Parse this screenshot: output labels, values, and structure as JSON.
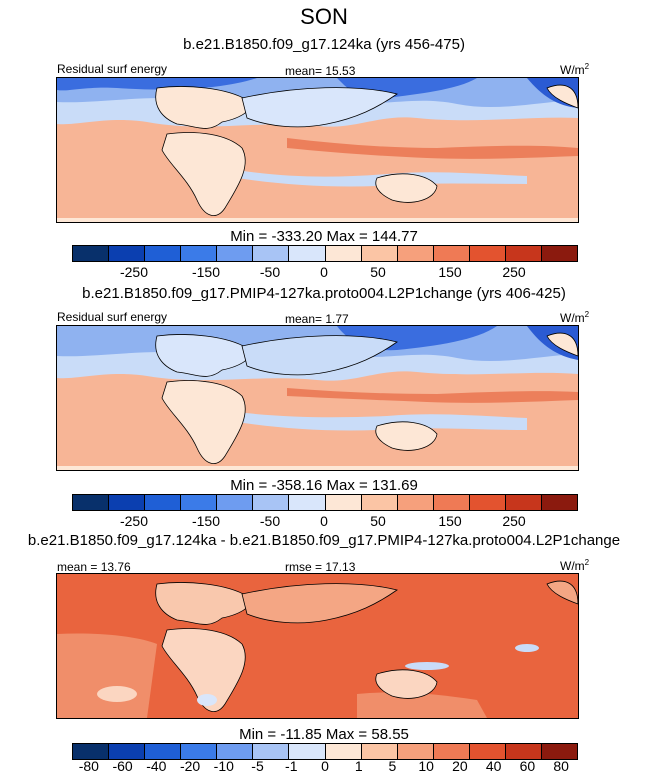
{
  "figure": {
    "title": "SON"
  },
  "panels": [
    {
      "title": "b.e21.B1850.f09_g17.124ka (yrs 456-475)",
      "left_label": "Residual surf energy",
      "center_label": "mean=  15.53",
      "units": "W/m",
      "units_sup": "2",
      "minmax": "Min = -333.20 Max = 144.77",
      "colorbar_ticks": [
        "-250",
        "-150",
        "-50",
        "0",
        "50",
        "150",
        "250"
      ]
    },
    {
      "title": "b.e21.B1850.f09_g17.PMIP4-127ka.proto004.L2P1change (yrs 406-425)",
      "left_label": "Residual surf energy",
      "center_label": "mean=  1.77",
      "units": "W/m",
      "units_sup": "2",
      "minmax": "Min = -358.16 Max = 131.69",
      "colorbar_ticks": [
        "-250",
        "-150",
        "-50",
        "0",
        "50",
        "150",
        "250"
      ]
    },
    {
      "title": "b.e21.B1850.f09_g17.124ka - b.e21.B1850.f09_g17.PMIP4-127ka.proto004.L2P1change",
      "left_label": "mean = 13.76",
      "center_label": "rmse = 17.13",
      "units": "W/m",
      "units_sup": "2",
      "minmax": "Min = -11.85 Max = 58.55",
      "colorbar_ticks": [
        "-80",
        "-60",
        "-40",
        "-20",
        "-10",
        "-5",
        "-1",
        "0",
        "1",
        "5",
        "10",
        "20",
        "40",
        "60",
        "80"
      ]
    }
  ],
  "chart_data": [
    {
      "type": "heatmap",
      "title": "b.e21.B1850.f09_g17.124ka (yrs 456-475)",
      "variable": "Residual surf energy",
      "units": "W/m2",
      "mean": 15.53,
      "min": -333.2,
      "max": 144.77,
      "colorbar_levels": [
        -300,
        -250,
        -200,
        -150,
        -100,
        -50,
        -25,
        0,
        25,
        50,
        100,
        150,
        200,
        250,
        300
      ]
    },
    {
      "type": "heatmap",
      "title": "b.e21.B1850.f09_g17.PMIP4-127ka.proto004.L2P1change (yrs 406-425)",
      "variable": "Residual surf energy",
      "units": "W/m2",
      "mean": 1.77,
      "min": -358.16,
      "max": 131.69,
      "colorbar_levels": [
        -300,
        -250,
        -200,
        -150,
        -100,
        -50,
        -25,
        0,
        25,
        50,
        100,
        150,
        200,
        250,
        300
      ]
    },
    {
      "type": "heatmap",
      "title": "b.e21.B1850.f09_g17.124ka - b.e21.B1850.f09_g17.PMIP4-127ka.proto004.L2P1change",
      "units": "W/m2",
      "mean": 13.76,
      "rmse": 17.13,
      "min": -11.85,
      "max": 58.55,
      "colorbar_levels": [
        -80,
        -60,
        -40,
        -20,
        -10,
        -5,
        -1,
        0,
        1,
        5,
        10,
        20,
        40,
        60,
        80
      ]
    }
  ],
  "colors": {
    "colorbar": [
      "#08306b",
      "#0b3fb0",
      "#1f5fd6",
      "#3b7be8",
      "#6e9cf0",
      "#a8c4f5",
      "#d9e6fb",
      "#fde7d6",
      "#fbc5a5",
      "#f6a07c",
      "#ef7a55",
      "#e3532f",
      "#c7361c",
      "#8b1a0e"
    ]
  }
}
